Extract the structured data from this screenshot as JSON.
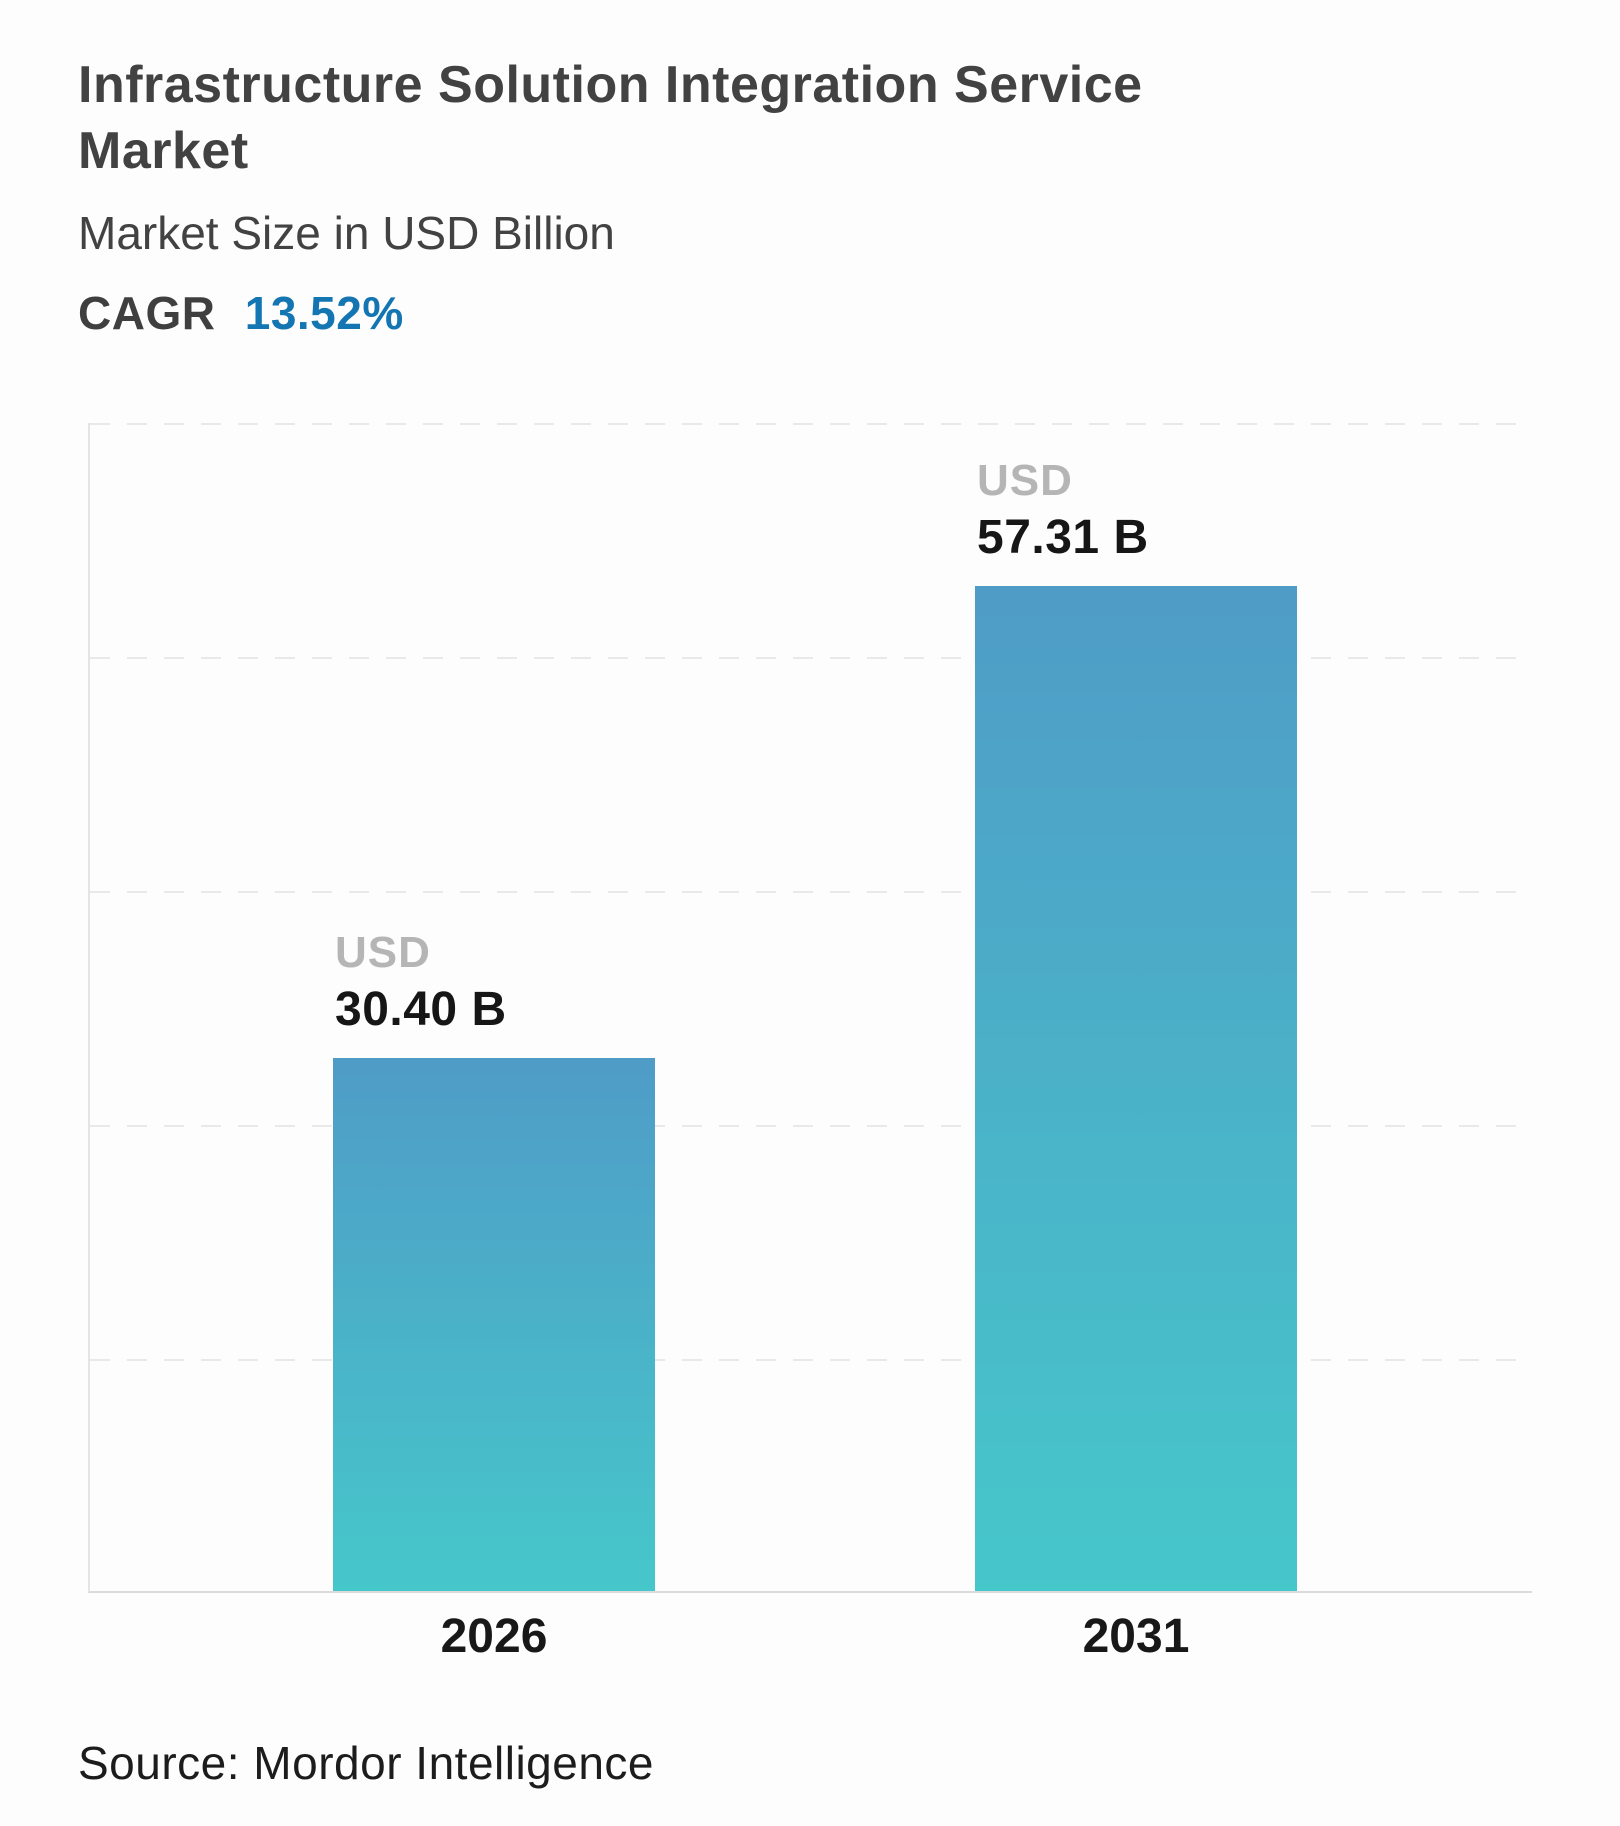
{
  "header": {
    "title_lines": [
      "Infrastructure Solution Integration Service",
      "Market"
    ],
    "subtitle": "Market Size in USD Billion",
    "cagr_label": "CAGR",
    "cagr_value": "13.52%"
  },
  "chart_data": {
    "type": "bar",
    "title": "Infrastructure Solution Integration Service Market",
    "subtitle": "Market Size in USD Billion",
    "cagr_percent": 13.52,
    "categories": [
      "2026",
      "2031"
    ],
    "values": [
      30.4,
      57.31
    ],
    "value_labels": [
      {
        "currency": "USD",
        "amount": "30.40 B"
      },
      {
        "currency": "USD",
        "amount": "57.31 B"
      }
    ],
    "unit": "USD Billion",
    "ylim": [
      0,
      66.6
    ],
    "grid": "horizontal-dashed",
    "legend": "none",
    "bar_gradient_top": "#4f9cc7",
    "bar_gradient_bottom": "#46c7ca"
  },
  "colors": {
    "accent_blue": "#1375B2",
    "title_gray": "#424242",
    "usd_label_gray": "#b5b5b5",
    "value_black": "#161616"
  },
  "footer": {
    "source": "Source: Mordor Intelligence"
  }
}
